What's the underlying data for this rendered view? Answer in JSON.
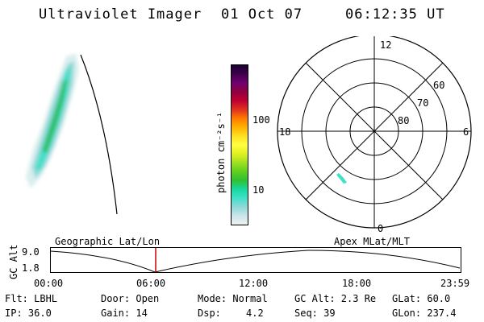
{
  "header": {
    "instrument": "Ultraviolet Imager",
    "date": "01 Oct 07",
    "time": "06:12:35 UT"
  },
  "colorbar": {
    "unit_label": "photon cm⁻²s⁻¹",
    "tick_labels": [
      "100",
      "10"
    ],
    "colors": [
      "#f0f0f0",
      "#c8e6ea",
      "#8fd8d8",
      "#40e0c8",
      "#18d8a0",
      "#30c030",
      "#60d020",
      "#a0e020",
      "#e0f020",
      "#ffff40",
      "#ffe020",
      "#ffb000",
      "#ff7a00",
      "#e03020",
      "#c00030",
      "#900040",
      "#700070",
      "#400050",
      "#1a0030"
    ]
  },
  "polar_plot": {
    "mlt_labels": {
      "top": "12",
      "bottom": "0",
      "left": "18",
      "right": "6"
    },
    "mlat_labels": [
      "60",
      "70",
      "80"
    ]
  },
  "orbit_plot": {
    "ylabel": "GC Alt",
    "ytick_labels": [
      "9.0",
      "1.8"
    ],
    "left_label": "Geographic Lat/Lon",
    "right_label": "Apex MLat/MLT",
    "xtick_labels": [
      "00:00",
      "06:00",
      "12:00",
      "18:00",
      "23:59"
    ],
    "current_time_marker": "06:12"
  },
  "info": {
    "flt": "Flt: LBHL",
    "door": "Door: Open",
    "mode": "Mode: Normal",
    "gc_alt": "GC Alt: 2.3 Re",
    "glat": "GLat:  60.0",
    "ip": "IP: 36.0",
    "gain": "Gain: 14",
    "dsp_label": "Dsp:",
    "dsp_value": "4.2",
    "seq": "Seq: 39",
    "glon": "GLon: 237.4"
  }
}
